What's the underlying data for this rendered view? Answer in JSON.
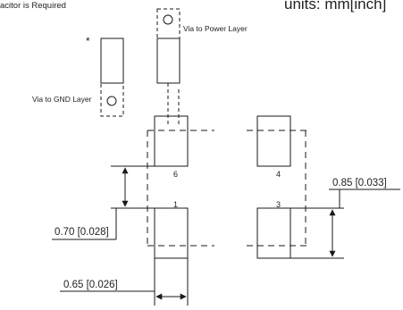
{
  "header": {
    "note": "acitor is Required",
    "units": "units: mm[inch]"
  },
  "labels": {
    "asterisk": "*",
    "via_power": "Via to Power Layer",
    "via_gnd": "Via to GND Layer"
  },
  "pins": {
    "p6": "6",
    "p4": "4",
    "p1": "1",
    "p3": "3"
  },
  "dimensions": {
    "pad_length": "0.85 [0.033]",
    "row_gap": "0.70 [0.028]",
    "pad_width": "0.65 [0.026]"
  },
  "colors": {
    "line": "#1a1a1a"
  }
}
